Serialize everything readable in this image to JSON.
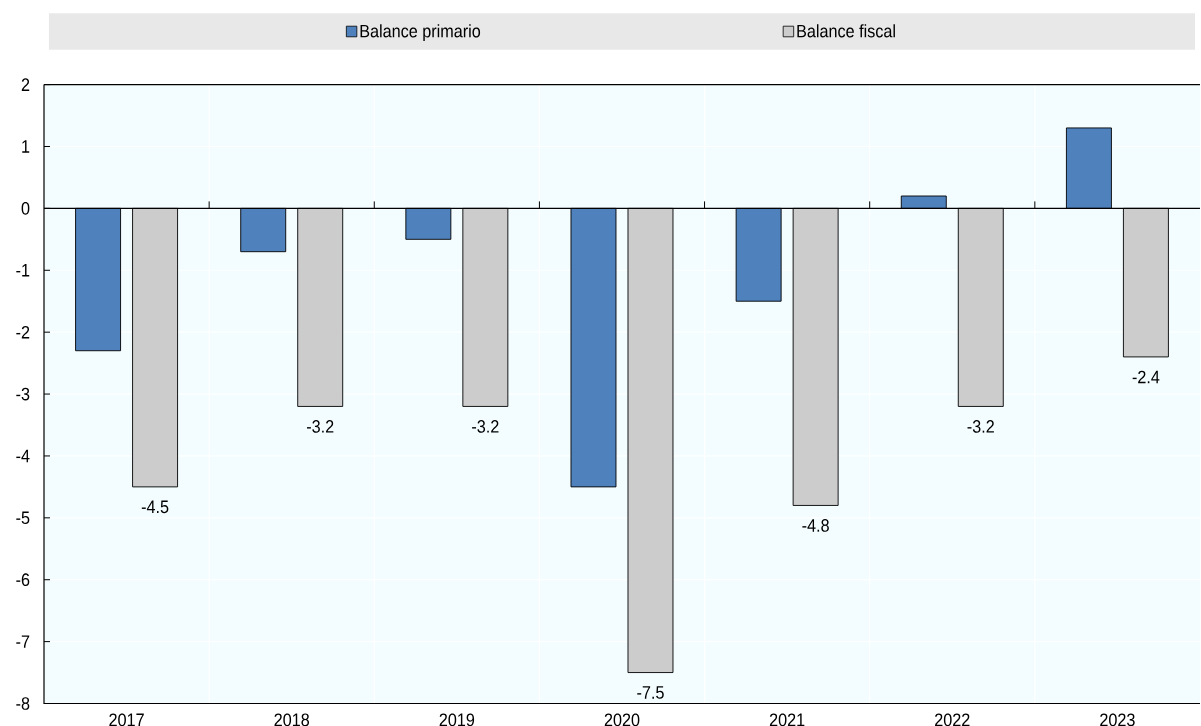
{
  "chart_data": {
    "type": "bar",
    "categories": [
      "2017",
      "2018",
      "2019",
      "2020",
      "2021",
      "2022",
      "2023"
    ],
    "series": [
      {
        "name": "Balance primario",
        "color": "#4f81bd",
        "values": [
          -2.3,
          -0.7,
          -0.5,
          -4.5,
          -1.5,
          0.2,
          1.3
        ]
      },
      {
        "name": "Balance fiscal",
        "color": "#cccccc",
        "values": [
          -4.5,
          -3.2,
          -3.2,
          -7.5,
          -4.8,
          -3.2,
          -2.4
        ],
        "value_labels": [
          "-4.5",
          "-3.2",
          "-3.2",
          "-7.5",
          "-4.8",
          "-3.2",
          "-2.4"
        ]
      }
    ],
    "ylim": [
      -8,
      2
    ],
    "yticks": [
      -8,
      -7,
      -6,
      -5,
      -4,
      -3,
      -2,
      -1,
      0,
      1,
      2
    ],
    "grid": true,
    "legend": "top"
  }
}
